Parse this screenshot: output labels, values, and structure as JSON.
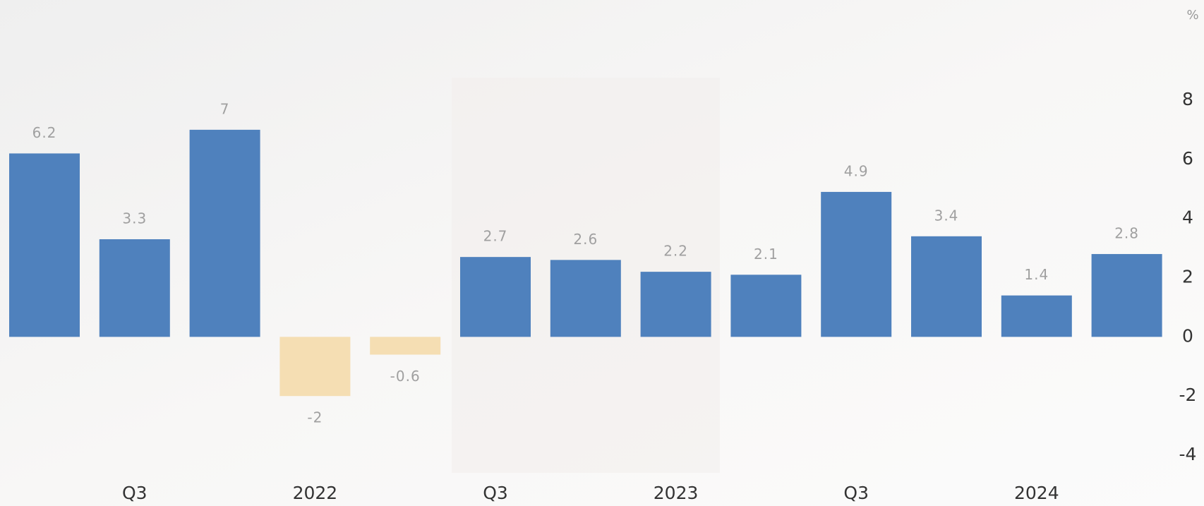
{
  "chart_data": {
    "type": "bar",
    "unit": "%",
    "categories": [
      null,
      "Q3",
      null,
      "2022",
      null,
      "Q3",
      null,
      "2023",
      null,
      "Q3",
      null,
      "2024",
      null
    ],
    "values": [
      6.2,
      3.3,
      7,
      -2,
      -0.6,
      2.7,
      2.6,
      2.2,
      2.1,
      4.9,
      3.4,
      1.4,
      2.8
    ],
    "color": "#4f81bd",
    "negative_color": "#f5deb3",
    "ylim": [
      -4.5,
      8.5
    ],
    "yticks": [
      -4,
      -2,
      0,
      2,
      4,
      6,
      8
    ],
    "grid": false
  }
}
